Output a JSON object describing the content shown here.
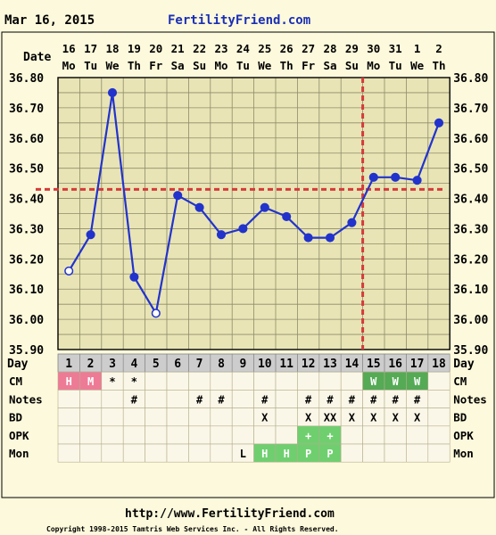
{
  "header": {
    "date_title": "Mar 16, 2015",
    "brand": "FertilityFriend.com"
  },
  "footer": {
    "url": "http://www.FertilityFriend.com",
    "copyright": "Copyright 1998-2015 Tamtris Web Services Inc. - All Rights Reserved."
  },
  "colors": {
    "background": "#fdf9dc",
    "plot_bg": "#e8e4b5",
    "grid": "#8f8c6a",
    "line": "#2233cc",
    "coverline": "#d63a3a",
    "row_bg_gray": "#cdcdcd",
    "menstruation": "#ee7b96",
    "cm_fertile": "#55aa55",
    "mon_positive": "#6fcf6f"
  },
  "chart_data": {
    "type": "line",
    "title": "",
    "y_axis_label": "",
    "x_axis_label": "",
    "ylim": [
      35.9,
      36.8
    ],
    "y_ticks": [
      "36.80",
      "36.70",
      "36.60",
      "36.50",
      "36.40",
      "36.30",
      "36.20",
      "36.10",
      "36.00",
      "35.90"
    ],
    "grid": true,
    "date_row_label": "Date",
    "day_row_label": "Day",
    "dates": [
      "16",
      "17",
      "18",
      "19",
      "20",
      "21",
      "22",
      "23",
      "24",
      "25",
      "26",
      "27",
      "28",
      "29",
      "30",
      "31",
      "1",
      "2"
    ],
    "weekdays": [
      "Mo",
      "Tu",
      "We",
      "Th",
      "Fr",
      "Sa",
      "Su",
      "Mo",
      "Tu",
      "We",
      "Th",
      "Fr",
      "Sa",
      "Su",
      "Mo",
      "Tu",
      "We",
      "Th"
    ],
    "cycle_days": [
      "1",
      "2",
      "3",
      "4",
      "5",
      "6",
      "7",
      "8",
      "9",
      "10",
      "11",
      "12",
      "13",
      "14",
      "15",
      "16",
      "17",
      "18"
    ],
    "series": [
      {
        "values": [
          36.16,
          36.28,
          36.75,
          36.14,
          36.02,
          36.41,
          36.37,
          36.28,
          36.3,
          36.37,
          36.34,
          36.27,
          36.27,
          36.32,
          36.47,
          36.47,
          36.46,
          36.65
        ],
        "open_markers_at_cycle_days": [
          "1",
          "5"
        ]
      }
    ],
    "coverline": 36.43,
    "ovulation_vertical_line_between_cycle_days": [
      "14",
      "15"
    ],
    "rows": [
      {
        "label": "CM",
        "cells": [
          "H",
          "M",
          "*",
          "*",
          "",
          "",
          "",
          "",
          "",
          "",
          "",
          "",
          "",
          "",
          "W",
          "W",
          "W",
          ""
        ]
      },
      {
        "label": "Notes",
        "cells": [
          "",
          "",
          "",
          "#",
          "",
          "",
          "#",
          "#",
          "",
          "#",
          "",
          "#",
          "#",
          "#",
          "#",
          "#",
          "#",
          ""
        ]
      },
      {
        "label": "BD",
        "cells": [
          "",
          "",
          "",
          "",
          "",
          "",
          "",
          "",
          "",
          "X",
          "",
          "X",
          "XX",
          "X",
          "X",
          "X",
          "X",
          ""
        ]
      },
      {
        "label": "OPK",
        "cells": [
          "",
          "",
          "",
          "",
          "",
          "",
          "",
          "",
          "",
          "",
          "",
          "+",
          "+",
          "",
          "",
          "",
          "",
          ""
        ]
      },
      {
        "label": "Mon",
        "cells": [
          "",
          "",
          "",
          "",
          "",
          "",
          "",
          "",
          "L",
          "H",
          "H",
          "P",
          "P",
          "",
          "",
          "",
          "",
          ""
        ]
      }
    ]
  }
}
